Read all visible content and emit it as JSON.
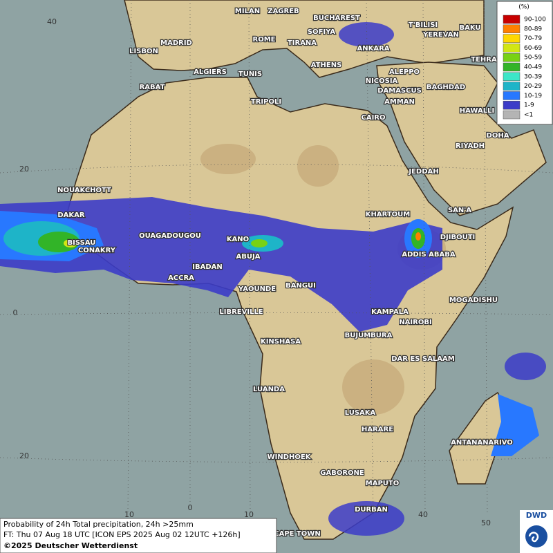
{
  "legend": {
    "title": "(%)",
    "entries": [
      {
        "label": "90-100",
        "color": "#c80000"
      },
      {
        "label": "80-89",
        "color": "#ff7f00"
      },
      {
        "label": "70-79",
        "color": "#ffd700"
      },
      {
        "label": "60-69",
        "color": "#d2e614"
      },
      {
        "label": "50-59",
        "color": "#78d214"
      },
      {
        "label": "40-49",
        "color": "#32b428"
      },
      {
        "label": "30-39",
        "color": "#3ce6c8"
      },
      {
        "label": "20-29",
        "color": "#1eb4c8"
      },
      {
        "label": "10-19",
        "color": "#2878ff"
      },
      {
        "label": "1-9",
        "color": "#3c3cc8"
      },
      {
        "label": "<1",
        "color": "#b4b4b4"
      }
    ]
  },
  "cities": [
    "MILAN",
    "ZAGREB",
    "BUCHAREST",
    "T'BILISI",
    "BAKU",
    "MADRID",
    "ROME",
    "SOFIYA",
    "YEREVAN",
    "LISBON",
    "TIRANA",
    "ANKARA",
    "TEHRA",
    "ATHENS",
    "ALGIERS",
    "TUNIS",
    "ALEPPO",
    "RABAT",
    "NICOSIA",
    "BAGHDAD",
    "DAMASCUS",
    "TRIPOLI",
    "AMMAN",
    "HAWALLI",
    "CAIRO",
    "DOHA",
    "RIYADH",
    "JEDDAH",
    "NOUAKCHOTT",
    "SAN'A",
    "KHARTOUM",
    "DAKAR",
    "DJIBOUTI",
    "BISSAU",
    "OUAGADOUGOU",
    "KANO",
    "CONAKRY",
    "ABUJA",
    "ADDIS ABABA",
    "IBADAN",
    "ACCRA",
    "YAOUNDE",
    "BANGUI",
    "MOGADISHU",
    "LIBREVILLE",
    "KAMPALA",
    "NAIROBI",
    "BUJUMBURA",
    "KINSHASA",
    "DAR ES SALAAM",
    "LUANDA",
    "LUSAKA",
    "HARARE",
    "ANTANANARIVO",
    "WINDHOEK",
    "GABORONE",
    "MAPUTO",
    "DURBAN",
    "CAPE TOWN"
  ],
  "grid_labels": {
    "latitude": [
      "40",
      "20",
      "0",
      "20"
    ],
    "longitude": [
      "10",
      "0",
      "10",
      "40",
      "50"
    ]
  },
  "footer": {
    "line1": "Probability of 24h Total precipitation, 24h >25mm",
    "line2": "FT: Thu 07 Aug 18 UTC [ICON EPS 2025 Aug 02 12UTC +126h]",
    "copyright": "©2025 Deutscher Wetterdienst"
  },
  "logo": "DWD"
}
